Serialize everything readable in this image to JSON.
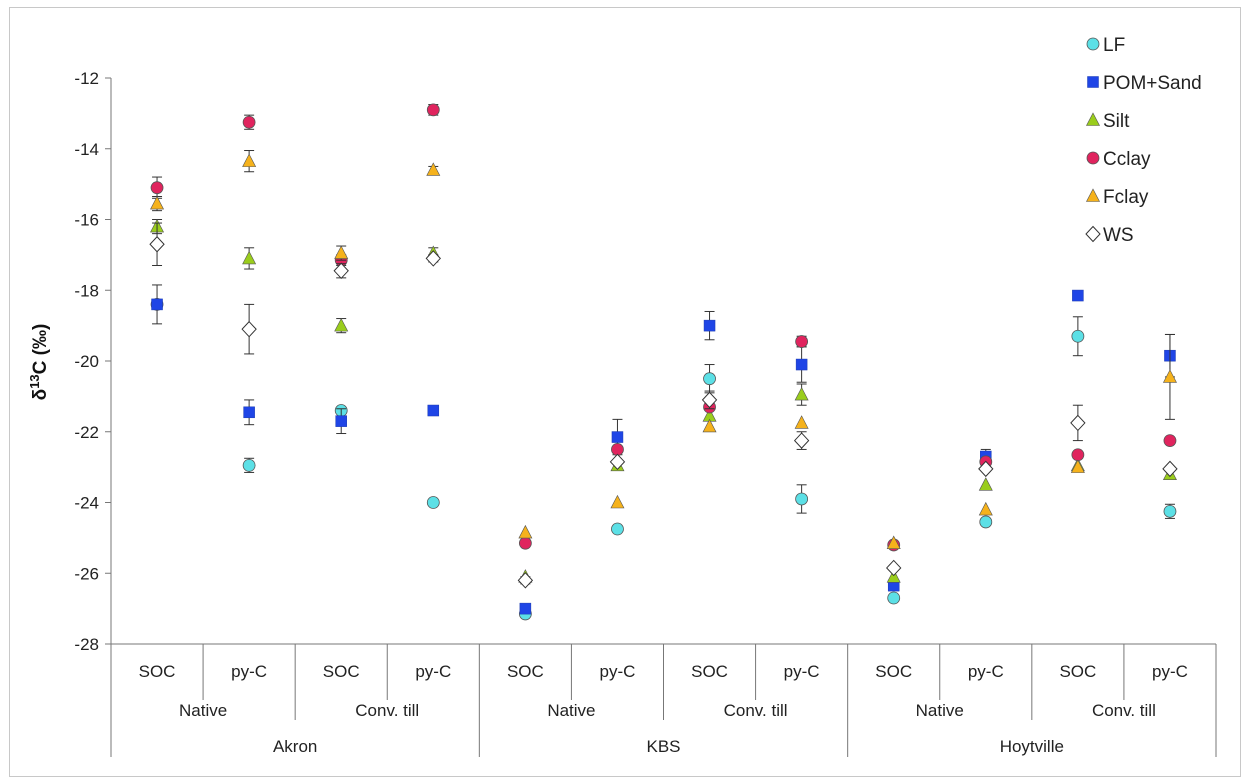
{
  "chart_data": {
    "type": "scatter",
    "ylabel_parts": [
      "δ",
      "13",
      "C (‰)"
    ],
    "ylim": [
      -28,
      -12
    ],
    "yticks": [
      -28,
      -26,
      -24,
      -22,
      -20,
      -18,
      -16,
      -14,
      -12
    ],
    "legend_position": "top-right",
    "categories": [
      "SOC",
      "py-C",
      "SOC",
      "py-C",
      "SOC",
      "py-C",
      "SOC",
      "py-C",
      "SOC",
      "py-C",
      "SOC",
      "py-C"
    ],
    "groups": [
      "Native",
      "Conv. till",
      "Native",
      "Conv. till",
      "Native",
      "Conv. till"
    ],
    "sites": [
      "Akron",
      "KBS",
      "Hoytville"
    ],
    "series": [
      {
        "name": "LF",
        "marker": "circle",
        "color": "#5ce0e6",
        "values": [
          -18.4,
          -22.95,
          -21.4,
          -24.0,
          -27.15,
          -24.75,
          -20.5,
          -23.9,
          -26.7,
          -24.55,
          -19.3,
          -24.25
        ],
        "err": [
          0,
          0.2,
          0,
          0,
          0,
          0,
          0.4,
          0.4,
          0,
          0.1,
          0.55,
          0.2
        ]
      },
      {
        "name": "POM+Sand",
        "marker": "square",
        "color": "#1f45e6",
        "values": [
          -18.4,
          -21.45,
          -21.7,
          -21.4,
          -27.0,
          -22.15,
          -19.0,
          -20.1,
          -26.35,
          -22.7,
          -18.15,
          -19.85
        ],
        "err": [
          0.55,
          0.35,
          0.35,
          0,
          0,
          0.5,
          0.4,
          0.5,
          0,
          0.2,
          0,
          0.6
        ]
      },
      {
        "name": "Silt",
        "marker": "triangle",
        "color": "#9acd1c",
        "values": [
          -16.2,
          -17.1,
          -19.0,
          -16.95,
          -26.1,
          -22.95,
          -21.55,
          -20.95,
          -26.1,
          -23.5,
          -22.95,
          -23.2
        ],
        "err": [
          0.2,
          0.3,
          0.2,
          0.15,
          0,
          0,
          0,
          0.3,
          0,
          0,
          0,
          0
        ]
      },
      {
        "name": "Cclay",
        "marker": "circle",
        "color": "#e0245e",
        "values": [
          -15.1,
          -13.25,
          -17.15,
          -12.9,
          -25.15,
          -22.5,
          -21.3,
          -19.45,
          -25.2,
          -22.85,
          -22.65,
          -22.25
        ],
        "err": [
          0.3,
          0.2,
          0.15,
          0.15,
          0,
          0,
          0,
          0.15,
          0,
          0,
          0,
          0.1
        ]
      },
      {
        "name": "Fclay",
        "marker": "triangle",
        "color": "#f5b21c",
        "values": [
          -15.55,
          -14.35,
          -16.95,
          -14.6,
          -24.85,
          -24.0,
          -21.85,
          -21.75,
          -25.15,
          -24.2,
          -23.0,
          -20.45
        ],
        "err": [
          0.2,
          0.3,
          0.2,
          0.1,
          0,
          0,
          0,
          0,
          0,
          0,
          0,
          1.2
        ]
      },
      {
        "name": "WS",
        "marker": "diamond",
        "color": "#ffffff",
        "values": [
          -16.7,
          -19.1,
          -17.45,
          -17.1,
          -26.2,
          -22.85,
          -21.1,
          -22.25,
          -25.85,
          -23.05,
          -21.75,
          -23.05
        ],
        "err": [
          0.6,
          0.7,
          0.2,
          0.1,
          0.1,
          0,
          0.25,
          0.25,
          0,
          0,
          0.5,
          0
        ]
      }
    ]
  }
}
